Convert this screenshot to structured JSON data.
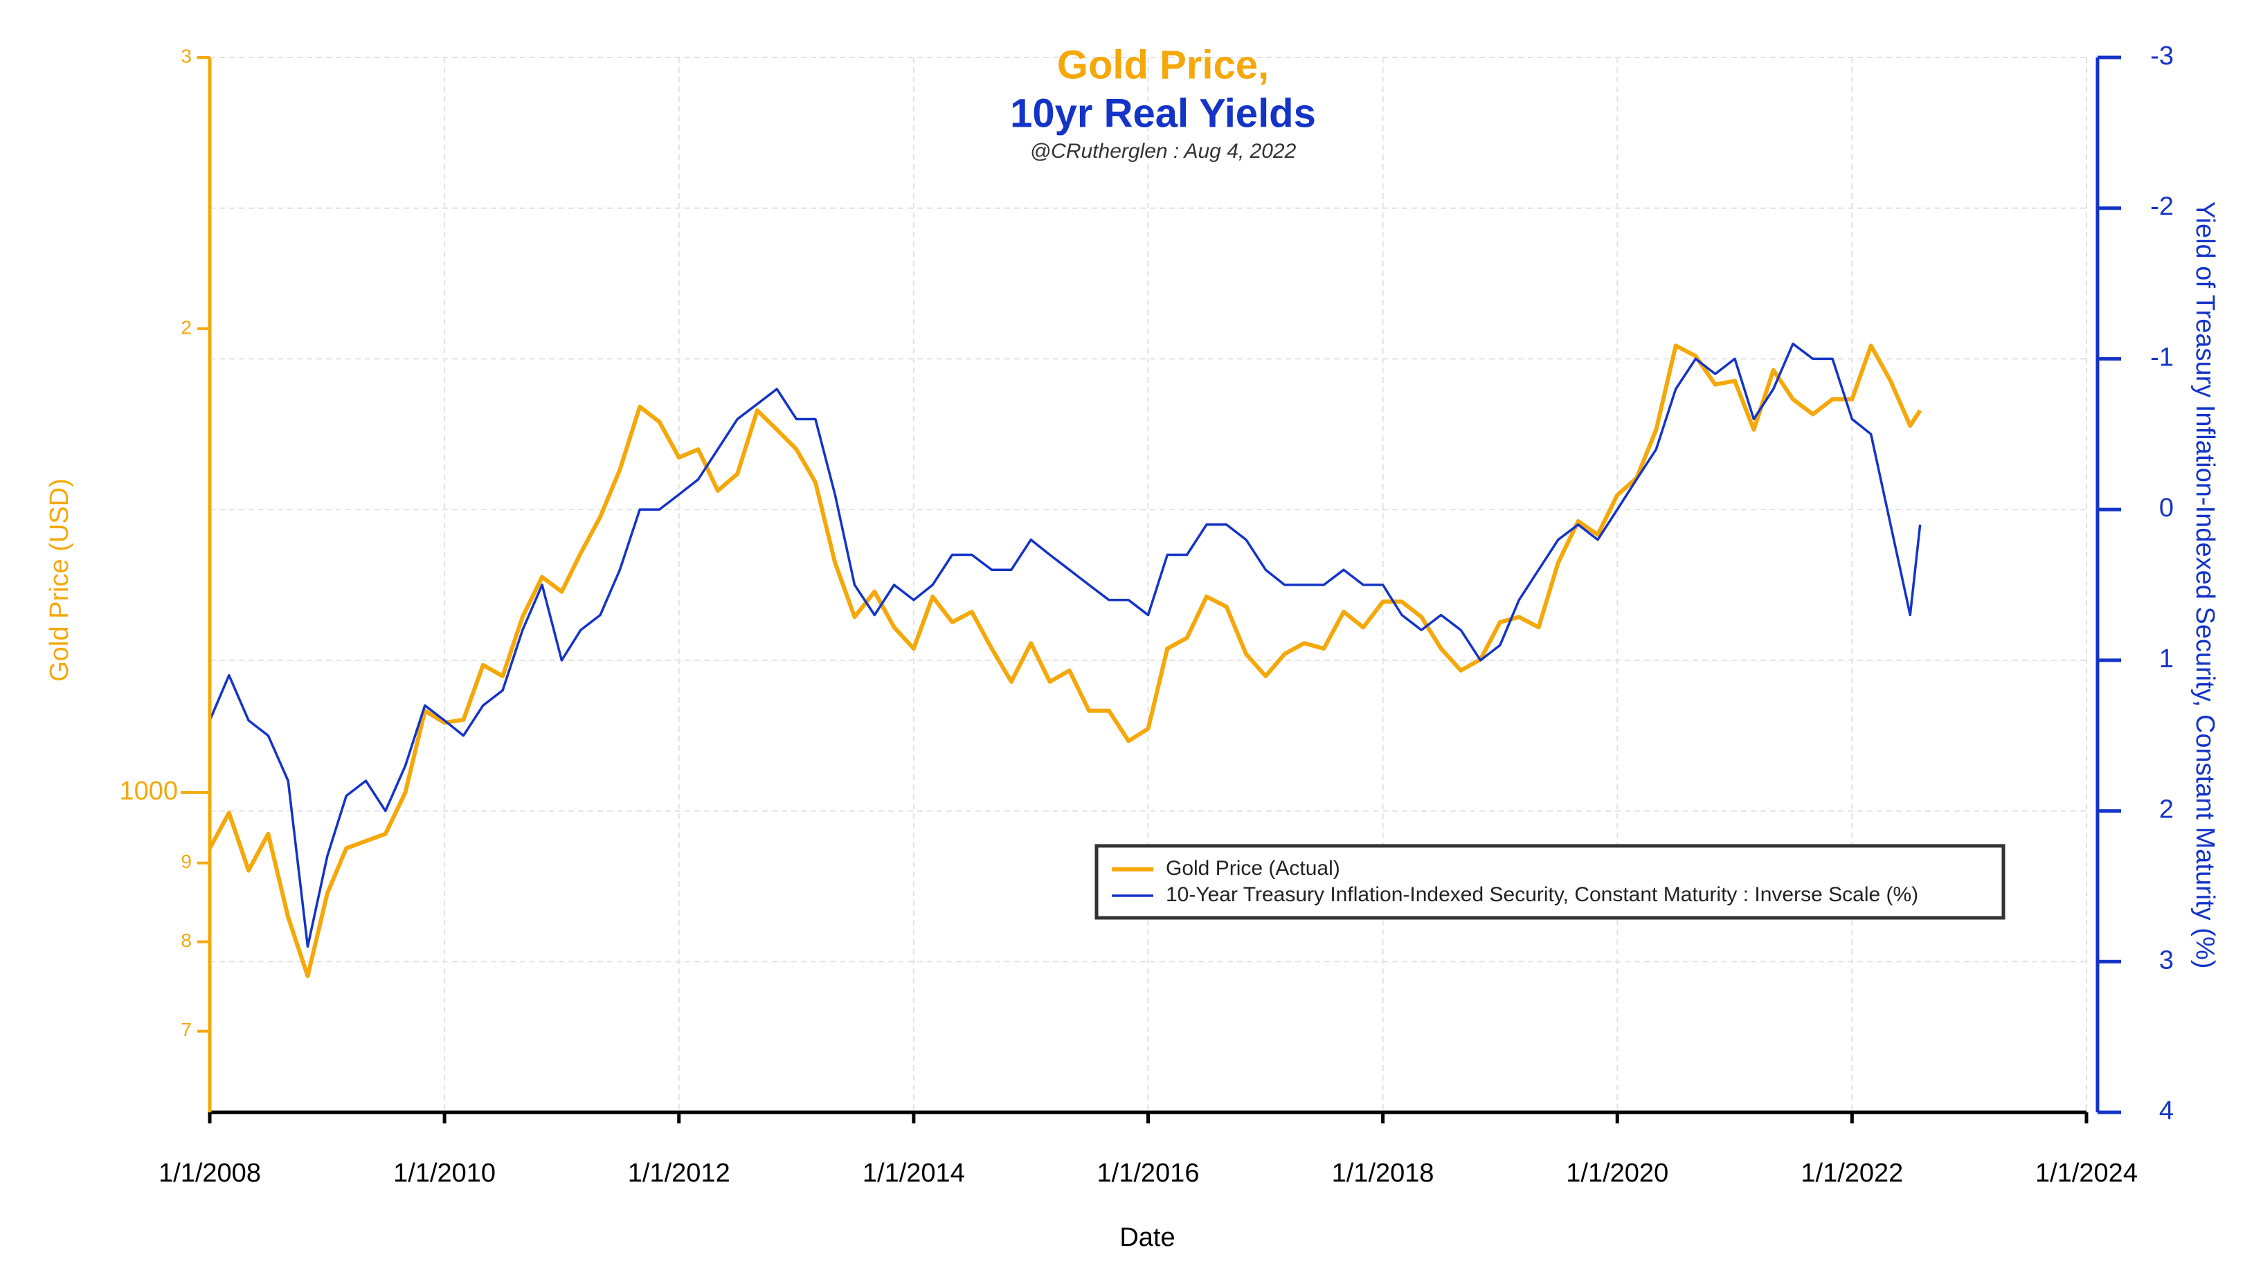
{
  "chart_data": {
    "type": "line",
    "title": [
      "Gold Price,",
      "10yr Real Yields"
    ],
    "subtitle": "@CRutherglen : Aug 4, 2022",
    "x_label": "Date",
    "y_label": "Gold Price (USD)",
    "y2_label": "Yield of Treasury Inflation-Indexed Security, Constant Maturity (%)",
    "yscale": "log",
    "grid": true,
    "legend": "center right",
    "xlim": [
      "2008-01-01",
      "2024-01-01"
    ],
    "xticks": [
      {
        "value": "2008-01-01",
        "label": "1/1/2008"
      },
      {
        "value": "2010-01-01",
        "label": "1/1/2010"
      },
      {
        "value": "2012-01-01",
        "label": "1/1/2012"
      },
      {
        "value": "2014-01-01",
        "label": "1/1/2014"
      },
      {
        "value": "2016-01-01",
        "label": "1/1/2016"
      },
      {
        "value": "2018-01-01",
        "label": "1/1/2018"
      },
      {
        "value": "2020-01-01",
        "label": "1/1/2020"
      },
      {
        "value": "2022-01-01",
        "label": "1/1/2022"
      },
      {
        "value": "2024-01-01",
        "label": "1/1/2024"
      }
    ],
    "ylim": [
      620,
      3000
    ],
    "yticks": [
      {
        "value": 700,
        "label": "7"
      },
      {
        "value": 800,
        "label": "8"
      },
      {
        "value": 900,
        "label": "9"
      },
      1000,
      {
        "value": 2000,
        "label": "2"
      },
      {
        "value": 3000,
        "label": "3"
      }
    ],
    "y2lim": [
      4,
      -3
    ],
    "y2ticks": [
      -3,
      -2,
      -1,
      0,
      1,
      2,
      3,
      4
    ],
    "x": [
      "2008-01-01",
      "2008-03-01",
      "2008-05-01",
      "2008-07-01",
      "2008-09-01",
      "2008-11-01",
      "2009-01-01",
      "2009-03-01",
      "2009-05-01",
      "2009-07-01",
      "2009-09-01",
      "2009-11-01",
      "2010-01-01",
      "2010-03-01",
      "2010-05-01",
      "2010-07-01",
      "2010-09-01",
      "2010-11-01",
      "2011-01-01",
      "2011-03-01",
      "2011-05-01",
      "2011-07-01",
      "2011-09-01",
      "2011-11-01",
      "2012-01-01",
      "2012-03-01",
      "2012-05-01",
      "2012-07-01",
      "2012-09-01",
      "2012-11-01",
      "2013-01-01",
      "2013-03-01",
      "2013-05-01",
      "2013-07-01",
      "2013-09-01",
      "2013-11-01",
      "2014-01-01",
      "2014-03-01",
      "2014-05-01",
      "2014-07-01",
      "2014-09-01",
      "2014-11-01",
      "2015-01-01",
      "2015-03-01",
      "2015-05-01",
      "2015-07-01",
      "2015-09-01",
      "2015-11-01",
      "2016-01-01",
      "2016-03-01",
      "2016-05-01",
      "2016-07-01",
      "2016-09-01",
      "2016-11-01",
      "2017-01-01",
      "2017-03-01",
      "2017-05-01",
      "2017-07-01",
      "2017-09-01",
      "2017-11-01",
      "2018-01-01",
      "2018-03-01",
      "2018-05-01",
      "2018-07-01",
      "2018-09-01",
      "2018-11-01",
      "2019-01-01",
      "2019-03-01",
      "2019-05-01",
      "2019-07-01",
      "2019-09-01",
      "2019-11-01",
      "2020-01-01",
      "2020-03-01",
      "2020-05-01",
      "2020-07-01",
      "2020-09-01",
      "2020-11-01",
      "2021-01-01",
      "2021-03-01",
      "2021-05-01",
      "2021-07-01",
      "2021-09-01",
      "2021-11-01",
      "2022-01-01",
      "2022-03-01",
      "2022-05-01",
      "2022-07-01",
      "2022-08-01"
    ],
    "series": [
      {
        "name": "Gold Price (Actual)",
        "color": "#f5a80a",
        "axis": "y",
        "values": [
          920,
          970,
          890,
          940,
          830,
          760,
          860,
          920,
          930,
          940,
          1000,
          1130,
          1110,
          1115,
          1210,
          1190,
          1300,
          1380,
          1350,
          1430,
          1510,
          1620,
          1780,
          1740,
          1650,
          1670,
          1570,
          1610,
          1770,
          1720,
          1670,
          1590,
          1410,
          1300,
          1350,
          1280,
          1240,
          1340,
          1290,
          1310,
          1240,
          1180,
          1250,
          1180,
          1200,
          1130,
          1130,
          1080,
          1100,
          1240,
          1260,
          1340,
          1320,
          1230,
          1190,
          1230,
          1250,
          1240,
          1310,
          1280,
          1330,
          1330,
          1300,
          1240,
          1200,
          1220,
          1290,
          1300,
          1280,
          1410,
          1500,
          1470,
          1560,
          1600,
          1720,
          1950,
          1920,
          1840,
          1850,
          1720,
          1880,
          1800,
          1760,
          1800,
          1800,
          1950,
          1850,
          1730,
          1770
        ]
      },
      {
        "name": "10-Year Treasury Inflation-Indexed Security, Constant Maturity : Inverse Scale (%)",
        "color": "#1434c8",
        "axis": "y2",
        "values": [
          1.4,
          1.1,
          1.4,
          1.5,
          1.8,
          2.9,
          2.3,
          1.9,
          1.8,
          2.0,
          1.7,
          1.3,
          1.4,
          1.5,
          1.3,
          1.2,
          0.8,
          0.5,
          1.0,
          0.8,
          0.7,
          0.4,
          0.0,
          0.0,
          -0.1,
          -0.2,
          -0.4,
          -0.6,
          -0.7,
          -0.8,
          -0.6,
          -0.6,
          -0.1,
          0.5,
          0.7,
          0.5,
          0.6,
          0.5,
          0.3,
          0.3,
          0.4,
          0.4,
          0.2,
          0.3,
          0.4,
          0.5,
          0.6,
          0.6,
          0.7,
          0.3,
          0.3,
          0.1,
          0.1,
          0.2,
          0.4,
          0.5,
          0.5,
          0.5,
          0.4,
          0.5,
          0.5,
          0.7,
          0.8,
          0.7,
          0.8,
          1.0,
          0.9,
          0.6,
          0.4,
          0.2,
          0.1,
          0.2,
          0.0,
          -0.2,
          -0.4,
          -0.8,
          -1.0,
          -0.9,
          -1.0,
          -0.6,
          -0.8,
          -1.1,
          -1.0,
          -1.0,
          -0.6,
          -0.5,
          0.1,
          0.7,
          0.1
        ]
      }
    ]
  }
}
